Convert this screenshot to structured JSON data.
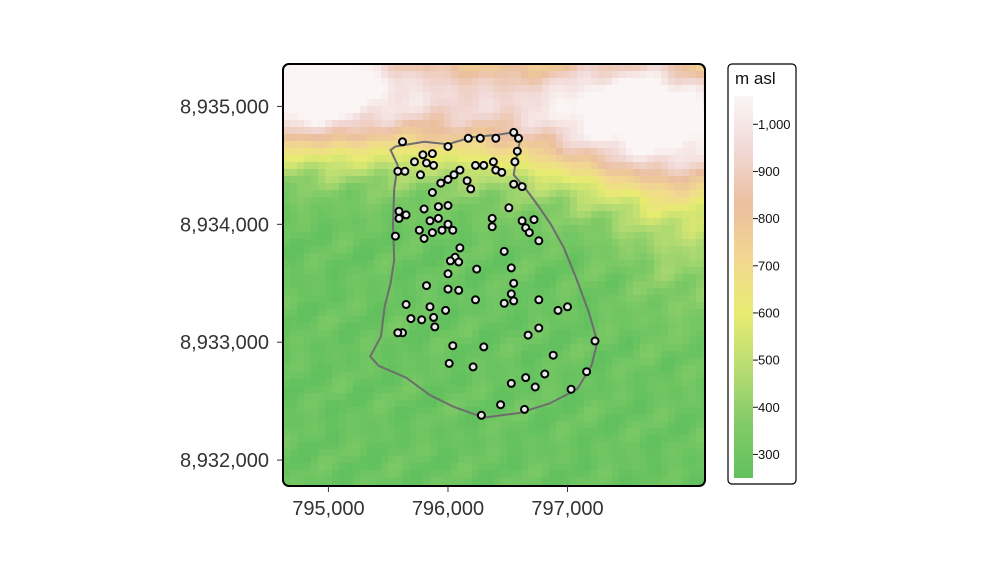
{
  "map": {
    "type": "raster-elevation-map",
    "x_ticks": [
      795000,
      796000,
      797000
    ],
    "x_tick_labels": [
      "795,000",
      "796,000",
      "797,000"
    ],
    "y_ticks": [
      8932000,
      8933000,
      8934000,
      8935000
    ],
    "y_tick_labels": [
      "8,932,000",
      "8,933,000",
      "8,934,000",
      "8,935,000"
    ],
    "xlim": [
      794620,
      798150
    ],
    "ylim": [
      8931780,
      8935360
    ],
    "study_area_boundary": [
      [
        795560,
        8934660
      ],
      [
        795800,
        8934700
      ],
      [
        796000,
        8934680
      ],
      [
        796200,
        8934740
      ],
      [
        796420,
        8934760
      ],
      [
        796540,
        8934780
      ],
      [
        796600,
        8934700
      ],
      [
        796570,
        8934550
      ],
      [
        796550,
        8934420
      ],
      [
        796650,
        8934300
      ],
      [
        796760,
        8934150
      ],
      [
        796860,
        8934000
      ],
      [
        796970,
        8933800
      ],
      [
        797070,
        8933550
      ],
      [
        797180,
        8933250
      ],
      [
        797250,
        8933000
      ],
      [
        797200,
        8932800
      ],
      [
        797080,
        8932600
      ],
      [
        796850,
        8932480
      ],
      [
        796600,
        8932400
      ],
      [
        796300,
        8932360
      ],
      [
        796050,
        8932450
      ],
      [
        795850,
        8932550
      ],
      [
        795650,
        8932700
      ],
      [
        795420,
        8932800
      ],
      [
        795350,
        8932880
      ],
      [
        795440,
        8933050
      ],
      [
        795470,
        8933300
      ],
      [
        795520,
        8933500
      ],
      [
        795550,
        8933700
      ],
      [
        795540,
        8934000
      ],
      [
        795550,
        8934300
      ],
      [
        795580,
        8934500
      ],
      [
        795520,
        8934630
      ],
      [
        795560,
        8934660
      ]
    ],
    "sample_points": [
      [
        795620,
        8934700
      ],
      [
        796000,
        8934660
      ],
      [
        796170,
        8934730
      ],
      [
        796270,
        8934730
      ],
      [
        796400,
        8934730
      ],
      [
        796550,
        8934780
      ],
      [
        796590,
        8934730
      ],
      [
        795790,
        8934590
      ],
      [
        795870,
        8934600
      ],
      [
        795720,
        8934530
      ],
      [
        795580,
        8934450
      ],
      [
        795640,
        8934450
      ],
      [
        795770,
        8934420
      ],
      [
        795820,
        8934520
      ],
      [
        795880,
        8934500
      ],
      [
        796050,
        8934420
      ],
      [
        796100,
        8934460
      ],
      [
        796000,
        8934380
      ],
      [
        796190,
        8934300
      ],
      [
        796230,
        8934500
      ],
      [
        796300,
        8934500
      ],
      [
        796380,
        8934530
      ],
      [
        796400,
        8934460
      ],
      [
        796450,
        8934440
      ],
      [
        796580,
        8934620
      ],
      [
        796560,
        8934530
      ],
      [
        796160,
        8934370
      ],
      [
        795940,
        8934350
      ],
      [
        795870,
        8934270
      ],
      [
        796550,
        8934340
      ],
      [
        796620,
        8934320
      ],
      [
        795590,
        8934110
      ],
      [
        795650,
        8934080
      ],
      [
        795590,
        8934050
      ],
      [
        795800,
        8934130
      ],
      [
        795920,
        8934150
      ],
      [
        796000,
        8934160
      ],
      [
        795850,
        8934030
      ],
      [
        795920,
        8934050
      ],
      [
        796000,
        8934000
      ],
      [
        795950,
        8933950
      ],
      [
        795870,
        8933930
      ],
      [
        795800,
        8933880
      ],
      [
        795560,
        8933900
      ],
      [
        795760,
        8933950
      ],
      [
        796040,
        8933950
      ],
      [
        796370,
        8934050
      ],
      [
        796370,
        8933980
      ],
      [
        796510,
        8934140
      ],
      [
        796620,
        8934030
      ],
      [
        796720,
        8934040
      ],
      [
        796650,
        8933970
      ],
      [
        796680,
        8933930
      ],
      [
        796760,
        8933860
      ],
      [
        796100,
        8933800
      ],
      [
        796060,
        8933720
      ],
      [
        796090,
        8933680
      ],
      [
        796020,
        8933690
      ],
      [
        796000,
        8933580
      ],
      [
        796240,
        8933620
      ],
      [
        796470,
        8933770
      ],
      [
        796530,
        8933630
      ],
      [
        795820,
        8933480
      ],
      [
        796000,
        8933450
      ],
      [
        796090,
        8933440
      ],
      [
        796550,
        8933500
      ],
      [
        796470,
        8933330
      ],
      [
        796530,
        8933410
      ],
      [
        796550,
        8933350
      ],
      [
        796230,
        8933360
      ],
      [
        795650,
        8933320
      ],
      [
        795980,
        8933270
      ],
      [
        795850,
        8933300
      ],
      [
        795880,
        8933210
      ],
      [
        795780,
        8933190
      ],
      [
        795690,
        8933200
      ],
      [
        795890,
        8933130
      ],
      [
        795620,
        8933080
      ],
      [
        795580,
        8933080
      ],
      [
        796760,
        8933360
      ],
      [
        796920,
        8933270
      ],
      [
        797000,
        8933300
      ],
      [
        796760,
        8933120
      ],
      [
        796670,
        8933060
      ],
      [
        797230,
        8933010
      ],
      [
        796040,
        8932970
      ],
      [
        796300,
        8932960
      ],
      [
        796880,
        8932890
      ],
      [
        796010,
        8932820
      ],
      [
        796210,
        8932790
      ],
      [
        796810,
        8932730
      ],
      [
        797160,
        8932750
      ],
      [
        796530,
        8932650
      ],
      [
        796650,
        8932700
      ],
      [
        796730,
        8932620
      ],
      [
        797030,
        8932600
      ],
      [
        796440,
        8932470
      ],
      [
        796640,
        8932430
      ],
      [
        796280,
        8932380
      ]
    ],
    "elevation_extremes": {
      "min": 250,
      "max": 1060
    }
  },
  "legend": {
    "title": "m asl",
    "range": [
      250,
      1060
    ],
    "ticks": [
      300,
      400,
      500,
      600,
      700,
      800,
      900,
      1000
    ],
    "tick_labels": [
      "300",
      "400",
      "500",
      "600",
      "700",
      "800",
      "900",
      "1,000"
    ],
    "colors": [
      "#62c15e",
      "#82cb67",
      "#b7dc73",
      "#e7ec70",
      "#f2d890",
      "#ebbf9e",
      "#f1d8d5",
      "#fbf6f5"
    ]
  },
  "colors": {
    "boundary": "#6d6d6d",
    "point_stroke": "#000000",
    "point_fill": "#e9e9e9",
    "frame": "#000000"
  }
}
